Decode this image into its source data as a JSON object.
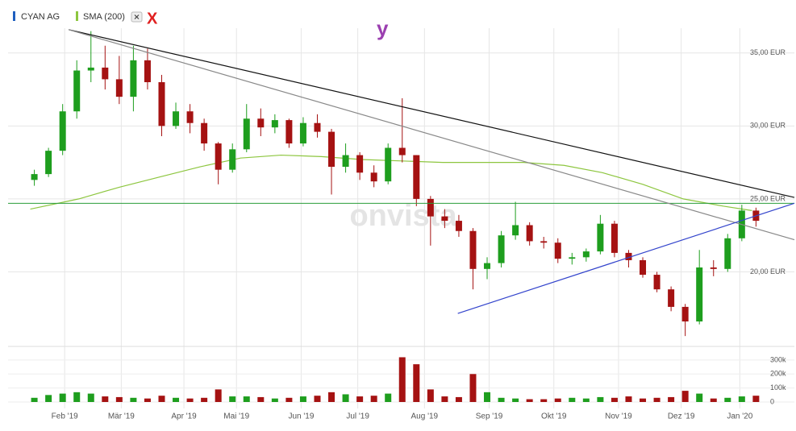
{
  "chart_data": [
    {
      "type": "candlestick",
      "name": "CYAN AG",
      "color": "#1f5fbf",
      "x": [
        17,
        24,
        31,
        38,
        45,
        52,
        59,
        66,
        73,
        80,
        87,
        94,
        101,
        108,
        115,
        122,
        129,
        136,
        143,
        150,
        157,
        164,
        171,
        178,
        185,
        192,
        199,
        206,
        213,
        220,
        227,
        234,
        241,
        248,
        255,
        262,
        269,
        276,
        283,
        290,
        297,
        304,
        311,
        318,
        325,
        332,
        339,
        346,
        353,
        360,
        367,
        374
      ],
      "open": [
        26.3,
        26.7,
        28.3,
        31.0,
        33.8,
        34.0,
        33.2,
        32.0,
        34.5,
        33.0,
        30.0,
        31.0,
        30.2,
        28.8,
        27.0,
        28.4,
        30.5,
        29.9,
        30.4,
        28.8,
        30.2,
        29.6,
        27.2,
        28.0,
        26.8,
        26.2,
        28.5,
        28.0,
        25.0,
        23.8,
        23.5,
        22.8,
        20.2,
        20.6,
        22.5,
        23.2,
        22.1,
        22.0,
        20.9,
        21.0,
        21.4,
        23.3,
        21.3,
        20.8,
        19.8,
        18.8,
        17.6,
        16.6,
        20.3,
        20.2,
        22.3,
        24.2
      ],
      "high": [
        27.0,
        28.5,
        31.5,
        34.5,
        36.5,
        35.5,
        34.8,
        35.5,
        35.3,
        33.5,
        31.6,
        31.5,
        30.5,
        28.9,
        28.8,
        31.5,
        31.2,
        30.8,
        30.5,
        30.6,
        30.8,
        29.8,
        28.8,
        28.2,
        27.3,
        28.8,
        31.9,
        28.0,
        25.2,
        24.3,
        23.9,
        23.0,
        21.0,
        22.8,
        24.8,
        23.4,
        22.4,
        22.3,
        21.3,
        21.6,
        23.9,
        23.5,
        21.5,
        21.0,
        20.0,
        19.0,
        17.8,
        21.5,
        20.8,
        22.6,
        24.6,
        24.4
      ],
      "low": [
        25.9,
        26.5,
        28.0,
        30.5,
        33.0,
        32.5,
        31.5,
        31.0,
        32.5,
        29.3,
        29.8,
        29.5,
        28.3,
        26.0,
        26.8,
        28.2,
        29.3,
        29.5,
        28.5,
        28.6,
        29.2,
        25.3,
        26.8,
        26.3,
        25.8,
        26.0,
        27.5,
        24.5,
        21.8,
        23.0,
        22.4,
        18.8,
        19.5,
        20.3,
        22.2,
        21.8,
        21.6,
        20.6,
        20.5,
        20.7,
        21.2,
        21.0,
        20.3,
        19.6,
        18.6,
        17.3,
        15.6,
        16.4,
        19.7,
        20.0,
        22.1,
        23.1
      ],
      "close": [
        26.7,
        28.3,
        31.0,
        33.8,
        34.0,
        33.2,
        32.0,
        34.5,
        33.0,
        30.0,
        31.0,
        30.2,
        28.8,
        27.0,
        28.4,
        30.5,
        29.9,
        30.4,
        28.8,
        30.2,
        29.6,
        27.2,
        28.0,
        26.8,
        26.2,
        28.5,
        28.0,
        25.0,
        23.8,
        23.5,
        22.8,
        20.2,
        20.6,
        22.5,
        23.2,
        22.1,
        22.0,
        20.9,
        21.0,
        21.4,
        23.3,
        21.3,
        20.8,
        19.8,
        18.8,
        17.6,
        16.6,
        20.3,
        20.2,
        22.3,
        24.2,
        23.5
      ],
      "up_color": "#1e9e1e",
      "down_color": "#a51212",
      "series": [
        {
          "name": "SMA (200)",
          "color": "#8dc63f",
          "x": [
            15,
            39,
            59,
            79,
            99,
            119,
            139,
            159,
            179,
            199,
            219,
            239,
            259,
            279,
            298,
            318,
            338,
            358,
            372
          ],
          "values": [
            24.3,
            25.0,
            25.8,
            26.5,
            27.2,
            27.8,
            28.0,
            27.9,
            27.7,
            27.6,
            27.5,
            27.5,
            27.5,
            27.3,
            26.8,
            26.0,
            25.0,
            24.5,
            24.2
          ]
        }
      ],
      "trendlines": [
        {
          "x": [
            34,
            393
          ],
          "values": [
            36.6,
            25.1
          ],
          "color": "#111111"
        },
        {
          "x": [
            34,
            393
          ],
          "values": [
            36.6,
            22.2
          ],
          "color": "#888888"
        },
        {
          "x": [
            226.5,
            393
          ],
          "values": [
            17.15,
            24.7
          ],
          "color": "#3344cc"
        }
      ],
      "hline": {
        "value": 24.7,
        "color": "#2a9d3a"
      },
      "ylim": [
        15,
        36.7
      ],
      "yticks": [
        {
          "value": 20,
          "label": "20,00 EUR"
        },
        {
          "value": 25,
          "label": "25,00 EUR"
        },
        {
          "value": 30,
          "label": "30,00 EUR"
        },
        {
          "value": 35,
          "label": "35,00 EUR"
        }
      ],
      "xlim": [
        4,
        393
      ],
      "xticks": [
        {
          "value": 32,
          "label": "Feb '19"
        },
        {
          "value": 60,
          "label": "Mär '19"
        },
        {
          "value": 91,
          "label": "Apr '19"
        },
        {
          "value": 117,
          "label": "Mai '19"
        },
        {
          "value": 149,
          "label": "Jun '19"
        },
        {
          "value": 177,
          "label": "Jul '19"
        },
        {
          "value": 210,
          "label": "Aug '19"
        },
        {
          "value": 242,
          "label": "Sep '19"
        },
        {
          "value": 274,
          "label": "Okt '19"
        },
        {
          "value": 306,
          "label": "Nov '19"
        },
        {
          "value": 337,
          "label": "Dez '19"
        },
        {
          "value": 366,
          "label": "Jan '20"
        }
      ],
      "grid": true,
      "annotations": [
        {
          "text": "X",
          "color": "#e02020"
        },
        {
          "text": "y",
          "color": "#9b3fb0"
        }
      ],
      "watermark": "onvista"
    },
    {
      "type": "bar",
      "x": [
        17,
        24,
        31,
        38,
        45,
        52,
        59,
        66,
        73,
        80,
        87,
        94,
        101,
        108,
        115,
        122,
        129,
        136,
        143,
        150,
        157,
        164,
        171,
        178,
        185,
        192,
        199,
        206,
        213,
        220,
        227,
        234,
        241,
        248,
        255,
        262,
        269,
        276,
        283,
        290,
        297,
        304,
        311,
        318,
        325,
        332,
        339,
        346,
        353,
        360,
        367,
        374
      ],
      "values": [
        30000,
        50000,
        60000,
        70000,
        60000,
        40000,
        35000,
        30000,
        25000,
        45000,
        30000,
        25000,
        30000,
        90000,
        40000,
        40000,
        35000,
        25000,
        30000,
        40000,
        45000,
        70000,
        55000,
        40000,
        45000,
        60000,
        320000,
        270000,
        90000,
        40000,
        35000,
        200000,
        70000,
        30000,
        25000,
        20000,
        20000,
        25000,
        30000,
        25000,
        35000,
        30000,
        40000,
        25000,
        30000,
        35000,
        80000,
        60000,
        25000,
        30000,
        40000,
        45000
      ],
      "xlim": [
        4,
        393
      ],
      "ylim": [
        0,
        386000
      ],
      "yticks": [
        0,
        {
          "value": 100000,
          "label": "100k"
        },
        {
          "value": 200000,
          "label": "200k"
        },
        {
          "value": 300000,
          "label": "300k"
        }
      ]
    }
  ]
}
